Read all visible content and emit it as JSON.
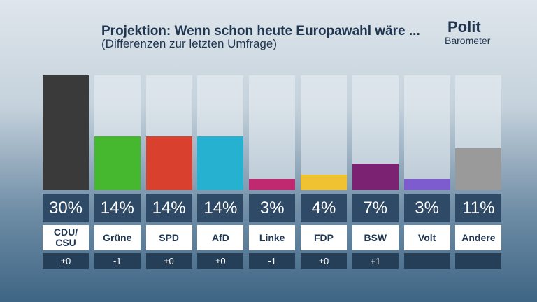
{
  "chart_data": {
    "type": "bar",
    "title": "Projektion: Wenn schon heute Europawahl wäre ...",
    "subtitle": "(Differenzen zur letzten Umfrage)",
    "logo": {
      "line1": "Polit",
      "line2": "Barometer"
    },
    "categories": [
      "CDU/\nCSU",
      "Grüne",
      "SPD",
      "AfD",
      "Linke",
      "FDP",
      "BSW",
      "Volt",
      "Andere"
    ],
    "values": [
      30,
      14,
      14,
      14,
      3,
      4,
      7,
      3,
      11
    ],
    "value_labels": [
      "30%",
      "14%",
      "14%",
      "14%",
      "3%",
      "4%",
      "7%",
      "3%",
      "11%"
    ],
    "changes": [
      "±0",
      "-1",
      "±0",
      "±0",
      "-1",
      "±0",
      "+1",
      null,
      null
    ],
    "colors": [
      "#3a3a3a",
      "#46b82f",
      "#d9402e",
      "#27b1d1",
      "#c0296f",
      "#f0c232",
      "#7b2272",
      "#7c5ccf",
      "#9a9a9a"
    ]
  }
}
